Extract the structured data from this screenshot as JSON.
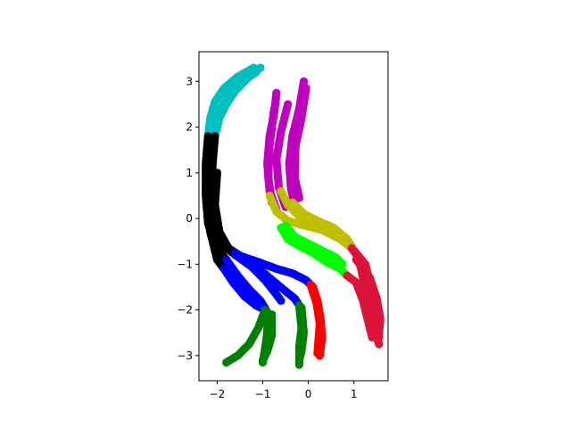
{
  "chart_data": {
    "type": "scatter",
    "title": "",
    "xlabel": "",
    "ylabel": "",
    "xlim": [
      -2.4,
      1.75
    ],
    "ylim": [
      -3.55,
      3.65
    ],
    "xticks": [
      -2,
      -1,
      0,
      1
    ],
    "xtick_labels": [
      "−2",
      "−1",
      "0",
      "1"
    ],
    "yticks": [
      -3,
      -2,
      -1,
      0,
      1,
      2,
      3
    ],
    "ytick_labels": [
      "−3",
      "−2",
      "−1",
      "0",
      "1",
      "2",
      "3"
    ],
    "grid": false,
    "legend": "none",
    "marker": "circle",
    "series": [
      {
        "color": "#00bfbf",
        "strands": [
          [
            [
              -2.2,
              1.8
            ],
            [
              -2.15,
              2.2
            ],
            [
              -2.05,
              2.55
            ],
            [
              -1.85,
              2.85
            ],
            [
              -1.55,
              3.1
            ],
            [
              -1.2,
              3.3
            ]
          ],
          [
            [
              -2.05,
              1.8
            ],
            [
              -1.95,
              2.2
            ],
            [
              -1.8,
              2.5
            ],
            [
              -1.6,
              2.8
            ],
            [
              -1.3,
              3.1
            ],
            [
              -1.05,
              3.3
            ]
          ],
          [
            [
              -2.15,
              1.45
            ],
            [
              -2.1,
              1.9
            ],
            [
              -1.95,
              2.35
            ],
            [
              -1.75,
              2.7
            ],
            [
              -1.45,
              3.0
            ],
            [
              -1.15,
              3.2
            ]
          ],
          [
            [
              -2.25,
              0.7
            ],
            [
              -2.2,
              1.2
            ],
            [
              -2.15,
              1.7
            ]
          ]
        ]
      },
      {
        "color": "#000000",
        "strands": [
          [
            [
              -2.2,
              1.8
            ],
            [
              -2.25,
              1.2
            ],
            [
              -2.25,
              0.5
            ],
            [
              -2.2,
              -0.1
            ],
            [
              -2.05,
              -0.6
            ],
            [
              -1.8,
              -0.9
            ]
          ],
          [
            [
              -2.05,
              1.8
            ],
            [
              -2.1,
              1.2
            ],
            [
              -2.15,
              0.4
            ],
            [
              -2.05,
              -0.2
            ],
            [
              -1.85,
              -0.6
            ],
            [
              -1.6,
              -0.8
            ]
          ],
          [
            [
              -2.15,
              1.4
            ],
            [
              -2.2,
              0.6
            ],
            [
              -2.15,
              -0.3
            ],
            [
              -2.0,
              -0.9
            ],
            [
              -1.85,
              -1.1
            ]
          ],
          [
            [
              -2.0,
              1.0
            ],
            [
              -2.05,
              0.3
            ],
            [
              -1.95,
              -0.3
            ],
            [
              -1.75,
              -0.65
            ],
            [
              -1.6,
              -0.75
            ]
          ]
        ]
      },
      {
        "color": "#0000ff",
        "strands": [
          [
            [
              -1.8,
              -0.9
            ],
            [
              -1.55,
              -1.25
            ],
            [
              -1.3,
              -1.55
            ],
            [
              -1.05,
              -1.8
            ],
            [
              -0.9,
              -2.05
            ]
          ],
          [
            [
              -1.6,
              -0.8
            ],
            [
              -1.25,
              -1.05
            ],
            [
              -0.95,
              -1.35
            ],
            [
              -0.75,
              -1.6
            ],
            [
              -0.6,
              -1.8
            ]
          ],
          [
            [
              -1.85,
              -1.1
            ],
            [
              -1.65,
              -1.4
            ],
            [
              -1.4,
              -1.7
            ],
            [
              -1.15,
              -1.9
            ],
            [
              -0.95,
              -2.0
            ]
          ],
          [
            [
              -1.55,
              -0.8
            ],
            [
              -1.1,
              -0.95
            ],
            [
              -0.7,
              -1.1
            ],
            [
              -0.35,
              -1.2
            ],
            [
              -0.05,
              -1.35
            ],
            [
              0.1,
              -1.5
            ]
          ],
          [
            [
              -1.6,
              -0.75
            ],
            [
              -1.2,
              -1.0
            ],
            [
              -0.85,
              -1.3
            ],
            [
              -0.55,
              -1.55
            ],
            [
              -0.3,
              -1.75
            ],
            [
              -0.2,
              -1.9
            ]
          ]
        ]
      },
      {
        "color": "#008000",
        "strands": [
          [
            [
              -0.95,
              -2.0
            ],
            [
              -1.1,
              -2.4
            ],
            [
              -1.3,
              -2.75
            ],
            [
              -1.55,
              -3.0
            ],
            [
              -1.8,
              -3.15
            ]
          ],
          [
            [
              -0.9,
              -2.05
            ],
            [
              -0.9,
              -2.5
            ],
            [
              -0.95,
              -2.85
            ],
            [
              -1.0,
              -3.15
            ]
          ],
          [
            [
              -0.8,
              -2.1
            ],
            [
              -0.8,
              -2.55
            ],
            [
              -0.9,
              -2.9
            ],
            [
              -1.0,
              -3.1
            ]
          ],
          [
            [
              -0.2,
              -1.9
            ],
            [
              -0.15,
              -2.4
            ],
            [
              -0.2,
              -2.8
            ],
            [
              -0.2,
              -3.2
            ]
          ],
          [
            [
              -0.15,
              -1.95
            ],
            [
              -0.1,
              -2.5
            ],
            [
              -0.15,
              -2.9
            ],
            [
              -0.2,
              -3.1
            ]
          ]
        ]
      },
      {
        "color": "#ff0000",
        "strands": [
          [
            [
              0.1,
              -1.5
            ],
            [
              0.2,
              -1.8
            ],
            [
              0.27,
              -2.2
            ],
            [
              0.3,
              -2.6
            ],
            [
              0.25,
              -3.0
            ]
          ],
          [
            [
              0.05,
              -1.45
            ],
            [
              0.18,
              -1.85
            ],
            [
              0.25,
              -2.3
            ],
            [
              0.22,
              -2.7
            ],
            [
              0.2,
              -2.95
            ]
          ]
        ]
      },
      {
        "color": "#bf00bf",
        "strands": [
          [
            [
              -0.7,
              2.75
            ],
            [
              -0.75,
              2.3
            ],
            [
              -0.85,
              1.8
            ],
            [
              -0.9,
              1.2
            ],
            [
              -0.85,
              0.6
            ],
            [
              -0.7,
              0.2
            ]
          ],
          [
            [
              -0.1,
              3.0
            ],
            [
              -0.2,
              2.4
            ],
            [
              -0.35,
              1.8
            ],
            [
              -0.42,
              1.2
            ],
            [
              -0.38,
              0.65
            ],
            [
              -0.3,
              0.3
            ]
          ],
          [
            [
              -0.45,
              2.5
            ],
            [
              -0.6,
              1.9
            ],
            [
              -0.7,
              1.3
            ],
            [
              -0.65,
              0.7
            ],
            [
              -0.5,
              0.25
            ]
          ],
          [
            [
              -0.05,
              2.85
            ],
            [
              -0.15,
              2.2
            ],
            [
              -0.28,
              1.6
            ],
            [
              -0.3,
              0.9
            ],
            [
              -0.2,
              0.45
            ]
          ],
          [
            [
              -0.75,
              2.4
            ],
            [
              -0.85,
              1.6
            ],
            [
              -0.88,
              0.9
            ],
            [
              -0.8,
              0.35
            ]
          ]
        ]
      },
      {
        "color": "#bfbf00",
        "strands": [
          [
            [
              -0.85,
              0.5
            ],
            [
              -0.7,
              0.15
            ],
            [
              -0.45,
              -0.05
            ],
            [
              -0.1,
              -0.15
            ],
            [
              0.3,
              -0.25
            ],
            [
              0.7,
              -0.45
            ],
            [
              0.95,
              -0.65
            ]
          ],
          [
            [
              -0.35,
              0.35
            ],
            [
              -0.1,
              0.1
            ],
            [
              0.2,
              -0.05
            ],
            [
              0.55,
              -0.2
            ],
            [
              0.85,
              -0.45
            ],
            [
              0.95,
              -0.6
            ]
          ],
          [
            [
              -0.6,
              0.6
            ],
            [
              -0.45,
              0.3
            ],
            [
              -0.2,
              0.05
            ],
            [
              0.15,
              -0.1
            ],
            [
              0.55,
              -0.3
            ],
            [
              0.85,
              -0.55
            ]
          ]
        ]
      },
      {
        "color": "#00ff00",
        "strands": [
          [
            [
              -0.6,
              -0.2
            ],
            [
              -0.45,
              -0.45
            ],
            [
              -0.2,
              -0.6
            ],
            [
              0.1,
              -0.75
            ],
            [
              0.4,
              -0.95
            ],
            [
              0.7,
              -1.1
            ],
            [
              0.85,
              -1.25
            ]
          ],
          [
            [
              -0.5,
              -0.15
            ],
            [
              -0.3,
              -0.4
            ],
            [
              0.0,
              -0.55
            ],
            [
              0.3,
              -0.7
            ],
            [
              0.6,
              -0.85
            ],
            [
              0.75,
              -1.0
            ]
          ]
        ]
      },
      {
        "color": "#dc143c",
        "strands": [
          [
            [
              0.95,
              -0.65
            ],
            [
              1.1,
              -0.85
            ],
            [
              1.2,
              -1.3
            ],
            [
              1.25,
              -1.7
            ],
            [
              1.35,
              -2.1
            ],
            [
              1.45,
              -2.45
            ],
            [
              1.55,
              -2.75
            ]
          ],
          [
            [
              1.0,
              -0.7
            ],
            [
              1.25,
              -1.0
            ],
            [
              1.35,
              -1.4
            ],
            [
              1.45,
              -1.8
            ],
            [
              1.5,
              -2.2
            ],
            [
              1.55,
              -2.6
            ]
          ],
          [
            [
              0.85,
              -1.25
            ],
            [
              1.05,
              -1.4
            ],
            [
              1.2,
              -1.8
            ],
            [
              1.3,
              -2.2
            ],
            [
              1.4,
              -2.6
            ]
          ],
          [
            [
              1.05,
              -0.9
            ],
            [
              1.35,
              -1.3
            ],
            [
              1.5,
              -1.75
            ],
            [
              1.58,
              -2.2
            ],
            [
              1.55,
              -2.5
            ]
          ]
        ]
      }
    ]
  }
}
